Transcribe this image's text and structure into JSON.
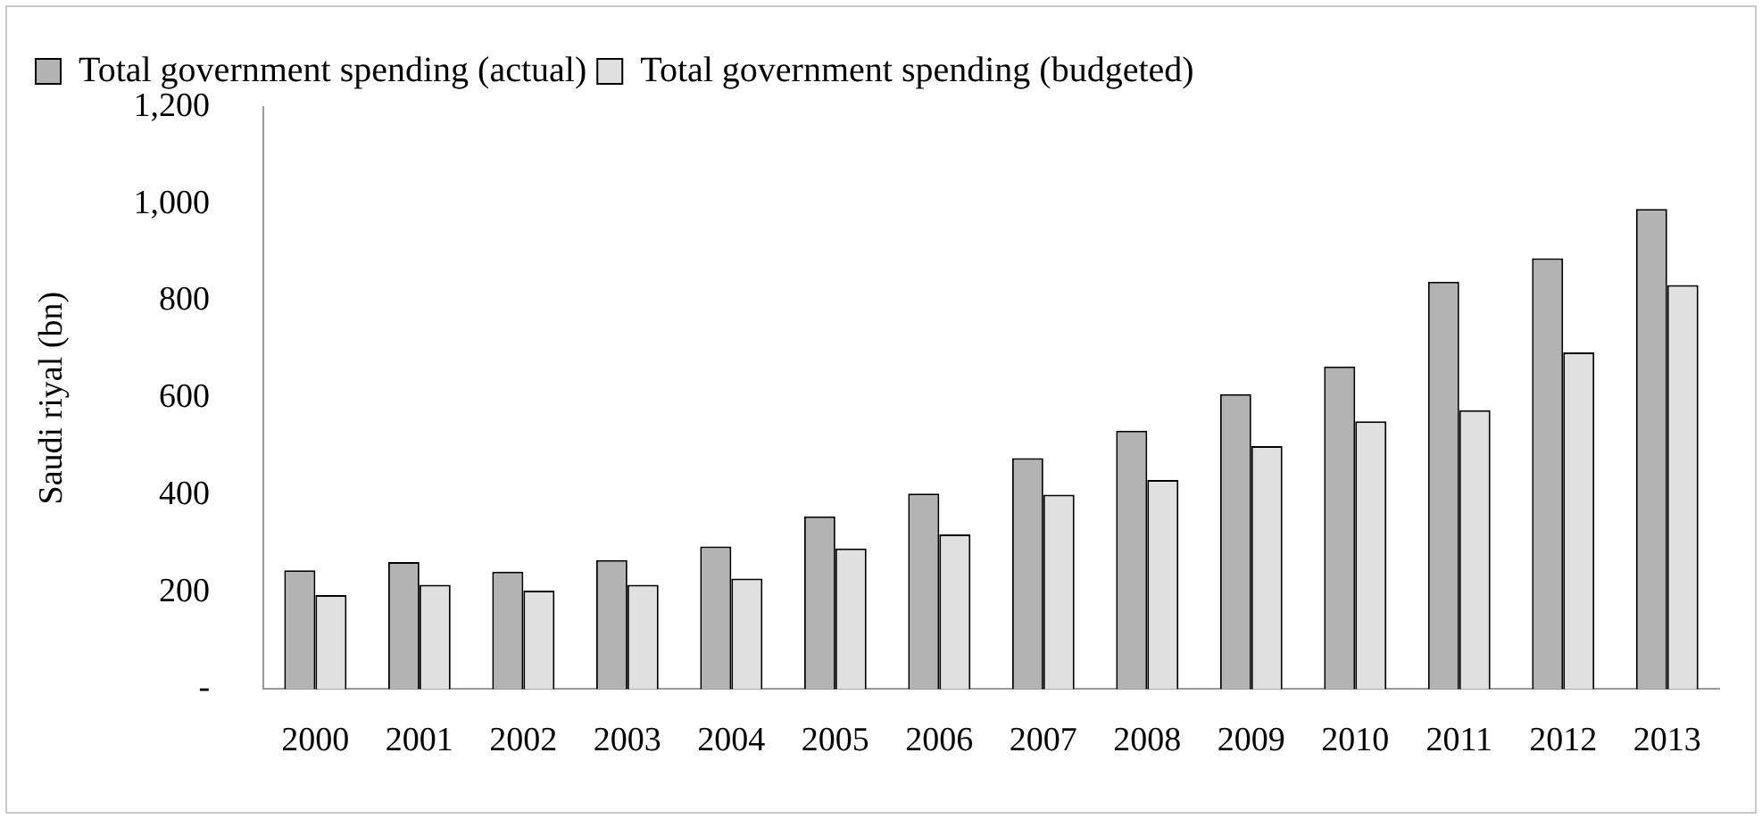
{
  "chart_data": {
    "type": "bar",
    "ylabel": "Saudi riyal (bn)",
    "categories": [
      "2000",
      "2001",
      "2002",
      "2003",
      "2004",
      "2005",
      "2006",
      "2007",
      "2008",
      "2009",
      "2010",
      "2011",
      "2012",
      "2013"
    ],
    "series": [
      {
        "name": "Total government spending (actual)",
        "color": "#b3b3b3",
        "values": [
          245,
          262,
          242,
          266,
          294,
          356,
          403,
          476,
          533,
          608,
          665,
          840,
          888,
          990
        ]
      },
      {
        "name": "Total government spending (budgeted)",
        "color": "#e0e0e0",
        "values": [
          194,
          215,
          203,
          215,
          228,
          290,
          319,
          401,
          431,
          501,
          552,
          575,
          694,
          833
        ]
      }
    ],
    "ylim": [
      0,
      1200
    ],
    "yticks": [
      {
        "value": 0,
        "label": "-"
      },
      {
        "value": 200,
        "label": "200"
      },
      {
        "value": 400,
        "label": "400"
      },
      {
        "value": 600,
        "label": "600"
      },
      {
        "value": 800,
        "label": "800"
      },
      {
        "value": 1000,
        "label": "1,000"
      },
      {
        "value": 1200,
        "label": "1,200"
      }
    ],
    "grid": false,
    "legend": "top left"
  }
}
